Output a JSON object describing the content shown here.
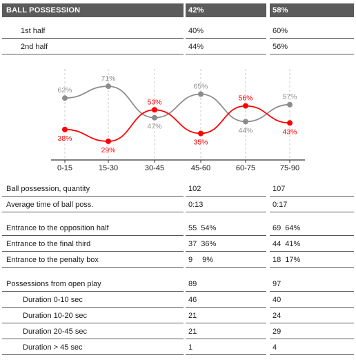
{
  "header": {
    "title": "BALL POSSESSION",
    "team1": "42%",
    "team2": "58%"
  },
  "halves": [
    {
      "label": "1st half",
      "team1": "40%",
      "team2": "60%"
    },
    {
      "label": "2nd half",
      "team1": "44%",
      "team2": "56%"
    }
  ],
  "chart_data": {
    "type": "line",
    "categories": [
      "0-15",
      "15-30",
      "30-45",
      "45-60",
      "60-75",
      "75-90"
    ],
    "series": [
      {
        "color": "#8c8c8c",
        "values": [
          62,
          71,
          47,
          65,
          44,
          57
        ],
        "labels": [
          "62%",
          "71%",
          "47%",
          "65%",
          "44%",
          "57%"
        ]
      },
      {
        "color": "#ff0000",
        "values": [
          38,
          29,
          53,
          35,
          56,
          43
        ],
        "labels": [
          "38%",
          "29%",
          "53%",
          "35%",
          "56%",
          "43%"
        ]
      }
    ],
    "ylim": [
      20,
      80
    ],
    "grid": "vertical dashed"
  },
  "stats_group1": [
    {
      "label": "Ball possession, quantity",
      "team1": "102",
      "team2": "107"
    },
    {
      "label": "Average time of ball poss.",
      "team1": "0:13",
      "team2": "0:17"
    }
  ],
  "stats_group2": [
    {
      "label": "Entrance to the opposition half",
      "team1": "55",
      "team1_pct": "54%",
      "team2": "69",
      "team2_pct": "64%"
    },
    {
      "label": "Entrance to the final third",
      "team1": "37",
      "team1_pct": "36%",
      "team2": "44",
      "team2_pct": "41%"
    },
    {
      "label": "Entrance to the penalty box",
      "team1": "9",
      "team1_pct": "9%",
      "team2": "18",
      "team2_pct": "17%"
    }
  ],
  "stats_group3": [
    {
      "label": "Possessions from open play",
      "team1": "89",
      "team2": "97"
    },
    {
      "label": "Duration  0-10 sec",
      "team1": "46",
      "team2": "40"
    },
    {
      "label": "Duration  10-20 sec",
      "team1": "21",
      "team2": "24"
    },
    {
      "label": "Duration  20-45 sec",
      "team1": "21",
      "team2": "29"
    },
    {
      "label": "Duration  > 45 sec",
      "team1": "1",
      "team2": "4"
    }
  ]
}
